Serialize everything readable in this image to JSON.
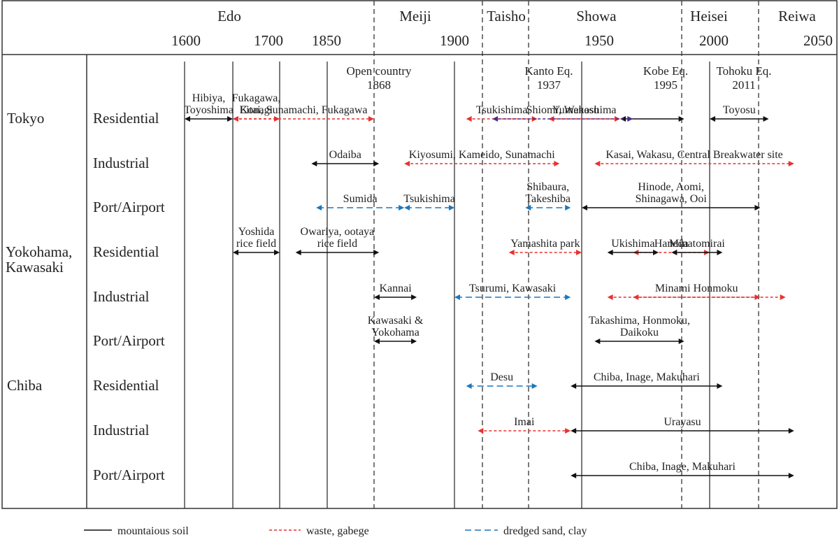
{
  "colors": {
    "mountainous": "#111111",
    "waste": "#e8312f",
    "dredged": "#1c77bd",
    "mixed": "#4a2b8c"
  },
  "eras": [
    "Edo",
    "Meiji",
    "Taisho",
    "Showa",
    "Heisei",
    "Reiwa"
  ],
  "year_ticks": [
    "1600",
    "1700",
    "1850",
    "1900",
    "1950",
    "2000",
    "2050"
  ],
  "events": [
    {
      "line1": "Open country",
      "line2": "1868"
    },
    {
      "line1": "Kanto Eq.",
      "line2": "1937"
    },
    {
      "line1": "Kobe Eq.",
      "line2": "1995"
    },
    {
      "line1": "Tohoku Eq.",
      "line2": "2011"
    }
  ],
  "regions": [
    {
      "name_lines": [
        "Tokyo"
      ]
    },
    {
      "name_lines": [
        "Yokohama,",
        "Kawasaki"
      ]
    },
    {
      "name_lines": [
        "Chiba"
      ]
    }
  ],
  "categories": [
    "Residential",
    "Industrial",
    "Port/Airport",
    "Residential",
    "Industrial",
    "Port/Airport",
    "Residential",
    "Industrial",
    "Port/Airport"
  ],
  "chart_data": {
    "type": "timeline",
    "x_axis": "year",
    "soil_types": [
      "mountaious soil",
      "waste, gabege",
      "dredged sand, clay"
    ],
    "spans": [
      {
        "row": 0,
        "label_lines": [
          "Hibiya,",
          "Toyoshima"
        ],
        "start": 1600,
        "end": 1650,
        "soil": "mountaious soil"
      },
      {
        "row": 0,
        "label_lines": [
          "Fukagawa,",
          "Konagi"
        ],
        "start": 1650,
        "end": 1700,
        "soil": "waste, gabege"
      },
      {
        "row": 0,
        "label_lines": [
          "Eitai, Sunamachi, Fukagawa"
        ],
        "start": 1650,
        "end": 1868,
        "soil": "waste, gabege"
      },
      {
        "row": 0,
        "label_lines": [
          "Tsukishima"
        ],
        "start": 1905,
        "end": 1930,
        "soil": "waste, gabege"
      },
      {
        "row": 0,
        "label_lines": [
          "Yumenoshima"
        ],
        "start": 1935,
        "end": 1965,
        "soil": "waste, gabege"
      },
      {
        "row": 0,
        "label_lines": [
          ""
        ],
        "start": 1965,
        "end": 1990,
        "soil": "mountaious soil"
      },
      {
        "row": 0,
        "label_lines": [
          "Toyosu"
        ],
        "start": 2000,
        "end": 2025,
        "soil": "mountaious soil"
      },
      {
        "row": 0,
        "label_lines": [
          "Shiomi, Wakasu"
        ],
        "start": 1915,
        "end": 1970,
        "soil": "mixed"
      },
      {
        "row": 1,
        "label_lines": [
          "Odaiba"
        ],
        "start": 1800,
        "end": 1870,
        "soil": "mountaious soil"
      },
      {
        "row": 1,
        "label_lines": [
          "Kiyosumi, Kameido, Sunamachi"
        ],
        "start": 1880,
        "end": 1940,
        "soil": "waste, gabege"
      },
      {
        "row": 1,
        "label_lines": [
          "Kasai, Wakasu, Central Breakwater site"
        ],
        "start": 1955,
        "end": 2040,
        "soil": "waste, gabege"
      },
      {
        "row": 2,
        "label_lines": [
          "Sumida"
        ],
        "start": 1815,
        "end": 1880,
        "soil": "dredged sand, clay"
      },
      {
        "row": 2,
        "label_lines": [
          "Tsukishima"
        ],
        "start": 1880,
        "end": 1900,
        "soil": "dredged sand, clay"
      },
      {
        "row": 2,
        "label_lines": [
          "Shibaura,",
          "Takeshiba"
        ],
        "start": 1925,
        "end": 1945,
        "soil": "dredged sand, clay"
      },
      {
        "row": 2,
        "label_lines": [
          "Hinode, Aomi,",
          "Shinagawa, Ooi"
        ],
        "start": 1950,
        "end": 2020,
        "soil": "mountaious soil"
      },
      {
        "row": 3,
        "label_lines": [
          "Haneda"
        ],
        "start": 1970,
        "end": 2000,
        "soil": "waste, gabege"
      },
      {
        "row": 3,
        "label_lines": [
          "Yoshida",
          "rice field"
        ],
        "start": 1650,
        "end": 1700,
        "soil": "mountaious soil"
      },
      {
        "row": 3,
        "label_lines": [
          "Owariya, ootaya",
          "rice field"
        ],
        "start": 1750,
        "end": 1870,
        "soil": "mountaious soil"
      },
      {
        "row": 3,
        "label_lines": [
          "Yamashita park"
        ],
        "start": 1920,
        "end": 1950,
        "soil": "waste, gabege"
      },
      {
        "row": 3,
        "label_lines": [
          "Ukishima"
        ],
        "start": 1960,
        "end": 1980,
        "soil": "mountaious soil"
      },
      {
        "row": 3,
        "label_lines": [
          "Minatomirai"
        ],
        "start": 1985,
        "end": 2005,
        "soil": "mountaious soil"
      },
      {
        "row": 4,
        "label_lines": [
          ""
        ],
        "start": 1970,
        "end": 2020,
        "soil": "waste, gabege"
      },
      {
        "row": 4,
        "label_lines": [
          "Kannai"
        ],
        "start": 1868,
        "end": 1885,
        "soil": "mountaious soil"
      },
      {
        "row": 4,
        "label_lines": [
          "Tsurumi, Kawasaki"
        ],
        "start": 1900,
        "end": 1945,
        "soil": "dredged sand, clay"
      },
      {
        "row": 4,
        "label_lines": [
          "Minami Honmoku"
        ],
        "start": 1960,
        "end": 2035,
        "soil": "waste, gabege"
      },
      {
        "row": 5,
        "label_lines": [
          "Kawasaki &",
          "Yokohama"
        ],
        "start": 1868,
        "end": 1885,
        "soil": "mountaious soil"
      },
      {
        "row": 5,
        "label_lines": [
          "Takashima, Honmoku,",
          "Daikoku"
        ],
        "start": 1955,
        "end": 1990,
        "soil": "mountaious soil"
      },
      {
        "row": 6,
        "label_lines": [
          "Desu"
        ],
        "start": 1905,
        "end": 1930,
        "soil": "dredged sand, clay"
      },
      {
        "row": 6,
        "label_lines": [
          "Chiba, Inage, Makuhari"
        ],
        "start": 1945,
        "end": 2005,
        "soil": "mountaious soil"
      },
      {
        "row": 7,
        "label_lines": [
          "Imai"
        ],
        "start": 1910,
        "end": 1945,
        "soil": "waste, gabege"
      },
      {
        "row": 7,
        "label_lines": [
          "Urayasu"
        ],
        "start": 1945,
        "end": 2040,
        "soil": "mountaious soil"
      },
      {
        "row": 8,
        "label_lines": [
          "Chiba, Inage, Makuhari"
        ],
        "start": 1945,
        "end": 2040,
        "soil": "mountaious soil"
      }
    ]
  },
  "legend": [
    {
      "label": "mountaious soil",
      "soil": "mountaious soil"
    },
    {
      "label": "waste, gabege",
      "soil": "waste, gabege"
    },
    {
      "label": "dredged sand, clay",
      "soil": "dredged sand, clay"
    }
  ]
}
